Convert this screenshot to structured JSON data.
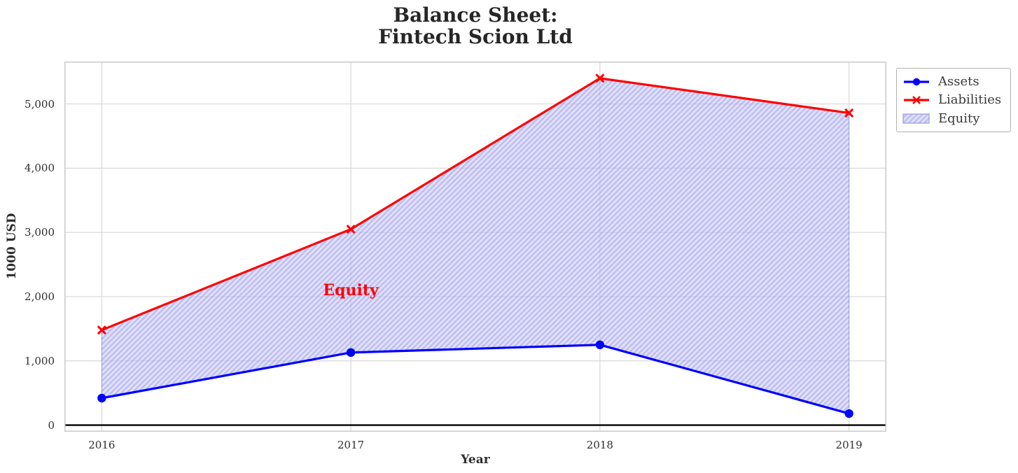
{
  "chart_data": {
    "type": "line",
    "title": "Balance Sheet:\nFintech Scion Ltd",
    "title_line1": "Balance Sheet:",
    "title_line2": "Fintech Scion Ltd",
    "xlabel": "Year",
    "ylabel": "1000 USD",
    "x": [
      2016,
      2017,
      2018,
      2019
    ],
    "xtick_labels": [
      "2016",
      "2017",
      "2018",
      "2019"
    ],
    "yticks": [
      0,
      1000,
      2000,
      3000,
      4000,
      5000
    ],
    "ytick_labels": [
      "0",
      "1,000",
      "2,000",
      "3,000",
      "4,000",
      "5,000"
    ],
    "xlim": [
      2015.85,
      2019.15
    ],
    "ylim": [
      -103,
      5660
    ],
    "grid": true,
    "series": [
      {
        "name": "Assets",
        "color": "#0000ff",
        "marker": "circle",
        "values": [
          420,
          1130,
          1250,
          180
        ]
      },
      {
        "name": "Liabilities",
        "color": "#ff0000",
        "marker": "x",
        "values": [
          1480,
          3050,
          5400,
          4860
        ]
      }
    ],
    "fill_between": {
      "name": "Equity",
      "between": [
        "Assets",
        "Liabilities"
      ],
      "facecolor": "#e1e1f8",
      "hatch": "//",
      "hatch_color": "#c6c6f2"
    },
    "annotation": {
      "text": "Equity",
      "x": 2017,
      "y": 2100,
      "color": "#ff0000"
    },
    "axhline": {
      "y": 0,
      "color": "#000000"
    },
    "legend": [
      "Assets",
      "Liabilities",
      "Equity"
    ],
    "legend_position": "outside-upper-right",
    "style": {
      "grid_color": "#d8d8d8",
      "spine_color": "#c9c9c9",
      "text_color": "#2e2e2e",
      "axhline_color": "#000000"
    }
  }
}
